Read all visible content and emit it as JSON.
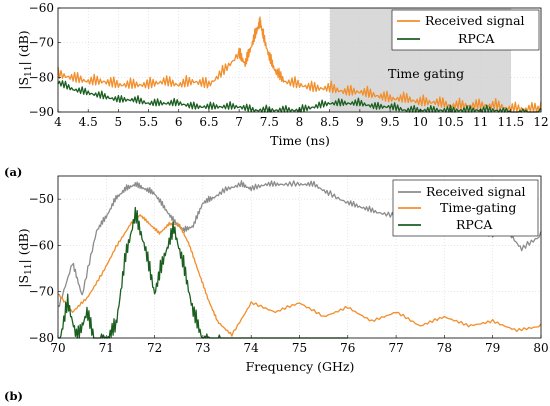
{
  "charts": [
    {
      "panel_label": "(a)",
      "xlabel": "Time (ns)",
      "ylabel": "|S11| (dB)",
      "ylabel_main": "|S",
      "ylabel_sub": "11",
      "ylabel_tail": "| (dB)",
      "xticks": [
        "4",
        "4.5",
        "5",
        "5.5",
        "6",
        "6.5",
        "7",
        "7.5",
        "8",
        "8.5",
        "9",
        "9.5",
        "10",
        "10.5",
        "11",
        "11.5",
        "12"
      ],
      "yticks": [
        "−60",
        "−70",
        "−80",
        "−90"
      ],
      "annotation": "Time gating",
      "legend": [
        "Received signal",
        "RPCA"
      ]
    },
    {
      "panel_label": "(b)",
      "xlabel": "Frequency (GHz)",
      "ylabel": "|S11| (dB)",
      "ylabel_main": "|S",
      "ylabel_sub": "11",
      "ylabel_tail": "| (dB)",
      "xticks": [
        "70",
        "71",
        "72",
        "73",
        "74",
        "75",
        "76",
        "77",
        "78",
        "79",
        "80"
      ],
      "yticks": [
        "−50",
        "−60",
        "−70",
        "−80"
      ],
      "legend": [
        "Received signal",
        "Time-gating",
        "RPCA"
      ]
    }
  ],
  "colors": {
    "orange": "#f28e2b",
    "green": "#1b5e20",
    "gray": "#8c8c8c",
    "shade": "#d9d9d9"
  },
  "chart_data": [
    {
      "type": "line",
      "xlabel": "Time (ns)",
      "ylabel": "|S11| (dB)",
      "xlim": [
        4,
        12
      ],
      "ylim": [
        -90,
        -60
      ],
      "grid": true,
      "legend_position": "top-right",
      "shaded_region": {
        "x": [
          8.5,
          11.5
        ],
        "label": "Time gating"
      },
      "series": [
        {
          "name": "Received signal",
          "color": "#f28e2b",
          "x": [
            4,
            4.25,
            4.5,
            4.75,
            5,
            5.25,
            5.5,
            5.75,
            6,
            6.25,
            6.5,
            6.75,
            7,
            7.1,
            7.2,
            7.3,
            7.35,
            7.4,
            7.5,
            7.6,
            7.75,
            8,
            8.25,
            8.5,
            8.75,
            9,
            9.25,
            9.5,
            9.75,
            10,
            10.25,
            10.5,
            10.75,
            11,
            11.25,
            11.5,
            11.75,
            12
          ],
          "y": [
            -77,
            -78,
            -79,
            -79,
            -80,
            -80,
            -80,
            -79,
            -80,
            -79,
            -80,
            -76,
            -71,
            -74,
            -69,
            -64,
            -62,
            -66,
            -72,
            -76,
            -79,
            -80,
            -81,
            -81,
            -82,
            -82,
            -83,
            -84,
            -84,
            -85,
            -85,
            -86,
            -86,
            -86,
            -86,
            -87,
            -87,
            -87
          ]
        },
        {
          "name": "RPCA",
          "color": "#1b5e20",
          "x": [
            4,
            4.25,
            4.5,
            4.75,
            5,
            5.25,
            5.5,
            5.75,
            6,
            6.25,
            6.5,
            6.75,
            7,
            7.25,
            7.5,
            7.75,
            8,
            8.25,
            8.5,
            8.75,
            9,
            9.25,
            9.5,
            9.75,
            10,
            10.25,
            10.5,
            10.75,
            11,
            11.25,
            11.5,
            11.75,
            12
          ],
          "y": [
            -80,
            -82,
            -83,
            -84,
            -85,
            -85,
            -86,
            -86,
            -86,
            -87,
            -87,
            -87,
            -87,
            -88,
            -88,
            -88,
            -88,
            -87,
            -86,
            -86,
            -86,
            -87,
            -87,
            -88,
            -88,
            -88,
            -88,
            -88,
            -88,
            -88,
            -89,
            -89,
            -89
          ]
        }
      ]
    },
    {
      "type": "line",
      "xlabel": "Frequency (GHz)",
      "ylabel": "|S11| (dB)",
      "xlim": [
        70,
        80
      ],
      "ylim": [
        -80,
        -45
      ],
      "grid": true,
      "legend_position": "top-right",
      "series": [
        {
          "name": "Received signal",
          "color": "#8c8c8c",
          "x": [
            70,
            70.3,
            70.5,
            70.8,
            71,
            71.2,
            71.4,
            71.6,
            71.8,
            72,
            72.2,
            72.4,
            72.6,
            72.8,
            73,
            73.2,
            73.5,
            73.8,
            74,
            74.3,
            74.6,
            75,
            75.3,
            75.6,
            76,
            76.3,
            76.6,
            77,
            77.3,
            77.6,
            78,
            78.3,
            78.6,
            79,
            79.3,
            79.6,
            80
          ],
          "y": [
            -73,
            -63,
            -70,
            -56,
            -53,
            -49,
            -47,
            -46,
            -47,
            -48,
            -51,
            -54,
            -56,
            -55,
            -50,
            -49,
            -47,
            -46,
            -47,
            -46,
            -46,
            -46,
            -46,
            -48,
            -50,
            -51,
            -52,
            -53,
            -54,
            -55,
            -55,
            -56,
            -56,
            -57,
            -56,
            -60,
            -57
          ]
        },
        {
          "name": "Time-gating",
          "color": "#f28e2b",
          "x": [
            70,
            70.3,
            70.6,
            70.9,
            71.2,
            71.5,
            71.7,
            71.9,
            72.1,
            72.3,
            72.5,
            72.7,
            72.9,
            73.1,
            73.3,
            73.6,
            74,
            74.5,
            75,
            75.5,
            76,
            76.5,
            77,
            77.5,
            78,
            78.5,
            79,
            79.5,
            80
          ],
          "y": [
            -70,
            -74,
            -71,
            -66,
            -60,
            -55,
            -53,
            -55,
            -57,
            -55,
            -55,
            -59,
            -65,
            -71,
            -76,
            -79,
            -72,
            -74,
            -72,
            -75,
            -73,
            -76,
            -74,
            -77,
            -75,
            -77,
            -76,
            -78,
            -77
          ]
        },
        {
          "name": "RPCA",
          "color": "#1b5e20",
          "x": [
            70,
            70.2,
            70.4,
            70.6,
            70.8,
            71,
            71.2,
            71.4,
            71.6,
            71.8,
            72,
            72.2,
            72.4,
            72.6,
            72.8,
            73,
            73.2,
            73.4,
            73.6,
            74,
            74.5,
            75,
            75.5,
            76
          ],
          "y": [
            -80,
            -70,
            -78,
            -72,
            -80,
            -78,
            -75,
            -60,
            -51,
            -58,
            -68,
            -60,
            -54,
            -62,
            -72,
            -78,
            -80,
            -79,
            -80,
            -80,
            -80,
            -80,
            -80,
            -80
          ]
        }
      ]
    }
  ]
}
